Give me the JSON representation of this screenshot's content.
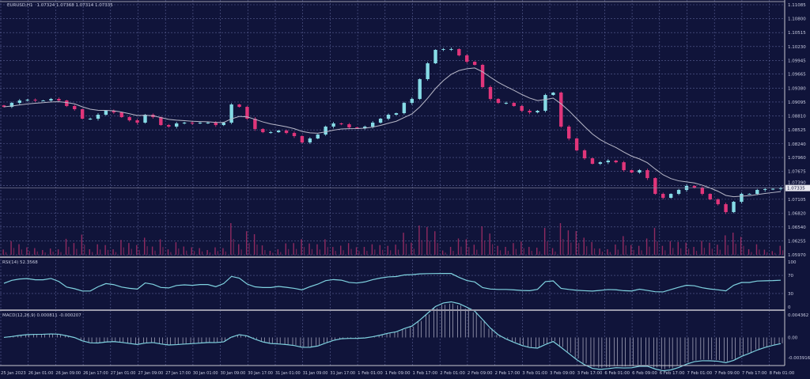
{
  "header": {
    "symbol": "EURUSD,H1",
    "ohlc": "1.07324 1.07368 1.07314 1.07335"
  },
  "colors": {
    "background": "#10143a",
    "grid": "#5a6095",
    "up": "#86dbe6",
    "down": "#e0357a",
    "ma": "#b8b8c8",
    "volume": "#b0306a",
    "indicator": "#7fd2e0",
    "frame": "#c8c8d0"
  },
  "chart_data": [
    {
      "type": "candlestick",
      "title": "EURUSD,H1 1.07324 1.07368 1.07314 1.07335",
      "price_ticks": [
        "1.11085",
        "1.10800",
        "1.10515",
        "1.10230",
        "1.09945",
        "1.09665",
        "1.09380",
        "1.09095",
        "1.08810",
        "1.08525",
        "1.08240",
        "1.07960",
        "1.07675",
        "1.07390",
        "1.07105",
        "1.06820",
        "1.06540",
        "1.06255",
        "1.05970"
      ],
      "ylim": [
        1.0597,
        1.11085
      ],
      "current_price": "1.07335",
      "time_ticks": [
        "25 Jan 2023",
        "26 Jan 01:00",
        "26 Jan 09:00",
        "26 Jan 17:00",
        "27 Jan 01:00",
        "27 Jan 09:00",
        "27 Jan 17:00",
        "30 Jan 01:00",
        "30 Jan 09:00",
        "30 Jan 17:00",
        "31 Jan 01:00",
        "31 Jan 09:00",
        "31 Jan 17:00",
        "1 Feb 01:00",
        "1 Feb 09:00",
        "1 Feb 17:00",
        "2 Feb 01:00",
        "2 Feb 09:00",
        "2 Feb 17:00",
        "3 Feb 01:00",
        "3 Feb 09:00",
        "3 Feb 17:00",
        "6 Feb 01:00",
        "6 Feb 09:00",
        "6 Feb 17:00",
        "7 Feb 01:00",
        "7 Feb 09:00",
        "7 Feb 17:00",
        "8 Feb 01:00"
      ],
      "closes": [
        1.08996,
        1.09077,
        1.09126,
        1.09142,
        1.09126,
        1.09126,
        1.09158,
        1.09126,
        1.09013,
        1.08948,
        1.08754,
        1.08754,
        1.08835,
        1.08916,
        1.08883,
        1.08786,
        1.08721,
        1.08673,
        1.08835,
        1.08786,
        1.08624,
        1.08592,
        1.08657,
        1.08673,
        1.08657,
        1.08673,
        1.08673,
        1.08624,
        1.08673,
        1.09045,
        1.08996,
        1.08754,
        1.08543,
        1.08478,
        1.08478,
        1.08511,
        1.08462,
        1.08398,
        1.08268,
        1.08349,
        1.0843,
        1.08592,
        1.08657,
        1.0864,
        1.08576,
        1.08559,
        1.08592,
        1.08673,
        1.08754,
        1.08835,
        1.08867,
        1.09077,
        1.09158,
        1.09563,
        1.09887,
        1.10162,
        1.10178,
        1.10178,
        1.10049,
        1.09919,
        1.09855,
        1.09401,
        1.09158,
        1.09077,
        1.09077,
        1.09013,
        1.08916,
        1.08883,
        1.08916,
        1.09239,
        1.09288,
        1.08592,
        1.08349,
        1.08106,
        1.07944,
        1.07831,
        1.07863,
        1.07896,
        1.07863,
        1.07701,
        1.07653,
        1.07701,
        1.07539,
        1.07216,
        1.07135,
        1.07216,
        1.07297,
        1.07378,
        1.07345,
        1.07216,
        1.07102,
        1.07005,
        1.06843,
        1.07054,
        1.07216,
        1.07216,
        1.07297,
        1.07313,
        1.0732,
        1.07335
      ],
      "grid": true
    },
    {
      "type": "line",
      "title": "RSI(14) 52.3568",
      "ticks": [
        "100",
        "70",
        "30",
        "0"
      ],
      "ylim": [
        0,
        100
      ]
    },
    {
      "type": "line+histogram",
      "title": "MACD(12,26,9) 0.000811 -0.000207",
      "ticks": [
        "0.004362",
        "0.00",
        "-0.003916"
      ],
      "ylim": [
        -0.003916,
        0.004362
      ]
    }
  ]
}
